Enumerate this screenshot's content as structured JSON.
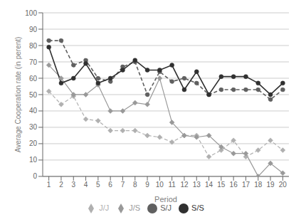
{
  "chart_data": {
    "type": "line",
    "xlabel": "Period",
    "ylabel": "Average Cooperation rate (in perent)",
    "x": [
      1,
      2,
      3,
      4,
      5,
      6,
      7,
      8,
      9,
      10,
      11,
      12,
      13,
      14,
      15,
      16,
      17,
      18,
      19,
      20
    ],
    "xlim": [
      0.5,
      20.5
    ],
    "xticks": [
      1,
      2,
      3,
      4,
      5,
      6,
      7,
      8,
      9,
      10,
      11,
      12,
      13,
      14,
      15,
      16,
      17,
      18,
      19,
      20
    ],
    "ylim": [
      0,
      100
    ],
    "yticks": [
      0,
      10,
      20,
      30,
      40,
      50,
      60,
      70,
      80,
      90,
      100
    ],
    "grid": true,
    "legend": "bottom",
    "series": [
      {
        "name": "J/J",
        "color": "#b0b0b0",
        "line_style": "dashed",
        "marker": "diamond",
        "values": [
          52,
          44,
          49,
          35,
          34,
          28,
          28,
          28,
          25,
          24,
          21,
          25,
          25,
          12,
          16,
          22,
          12,
          16,
          22,
          16
        ]
      },
      {
        "name": "J/S",
        "color": "#999999",
        "line_style": "solid",
        "marker": "diamond",
        "values": [
          68,
          60,
          50,
          50,
          56,
          40,
          40,
          45,
          44,
          60,
          33,
          25,
          24,
          25,
          18,
          14,
          14,
          0,
          8,
          2
        ]
      },
      {
        "name": "S/J",
        "color": "#606060",
        "line_style": "dashed",
        "marker": "circle",
        "values": [
          83,
          83,
          68,
          71,
          60,
          58,
          67,
          70,
          50,
          64,
          58,
          60,
          57,
          50,
          53,
          53,
          53,
          53,
          47,
          53
        ]
      },
      {
        "name": "S/S",
        "color": "#303030",
        "line_style": "solid",
        "marker": "circle",
        "values": [
          79,
          57,
          60,
          69,
          57,
          60,
          65,
          71,
          65,
          65,
          68,
          53,
          64,
          50,
          61,
          61,
          61,
          57,
          50,
          57
        ]
      }
    ]
  }
}
